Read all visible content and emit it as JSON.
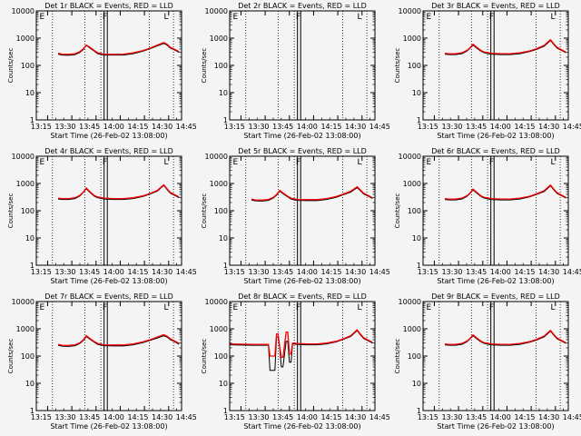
{
  "chart_data": {
    "type": "line",
    "x_unit": "minutes since 13:08:00",
    "ylim": [
      1,
      10000
    ],
    "yscale": "log",
    "grid": false,
    "x_ticks": [
      "13:15",
      "13:30",
      "13:45",
      "14:00",
      "14:15",
      "14:30",
      "14:45"
    ],
    "y_ticks": [
      "1",
      "10",
      "100",
      "1000",
      "10000"
    ],
    "xlabel": "Start Time (26-Feb-02 13:08:00)",
    "ylabel": "Counts/sec",
    "colors": {
      "events": "#000000",
      "lld": "#ff0000"
    },
    "panels": [
      {
        "title": "Det 1r BLACK = Events, RED = LLD",
        "series": [
          {
            "name": "Events",
            "color": "#000000",
            "x": [
              13.5,
              16,
              20,
              24,
              27,
              29,
              31,
              33.5,
              36,
              38,
              42,
              48,
              54,
              60,
              66,
              70,
              75,
              79,
              81,
              83,
              86,
              88.5
            ],
            "y": [
              260,
              240,
              235,
              250,
              300,
              380,
              540,
              420,
              330,
              270,
              240,
              240,
              240,
              270,
              330,
              400,
              520,
              640,
              560,
              430,
              360,
              300
            ]
          },
          {
            "name": "LLD",
            "color": "#ff0000",
            "x": [
              13.5,
              16,
              20,
              24,
              27,
              29,
              31,
              33.5,
              36,
              38,
              42,
              48,
              54,
              60,
              66,
              70,
              75,
              79,
              81,
              83,
              86,
              88.5
            ],
            "y": [
              280,
              260,
              255,
              270,
              320,
              400,
              560,
              450,
              350,
              290,
              260,
              255,
              260,
              290,
              350,
              420,
              560,
              690,
              600,
              460,
              380,
              320
            ]
          }
        ],
        "dotted": [
          10,
          30,
          40,
          70,
          85
        ],
        "solid": [
          42,
          44
        ],
        "markers": [
          "E",
          "F",
          "L"
        ]
      },
      {
        "title": "Det 2r BLACK = Events, RED = LLD",
        "series": [],
        "dotted": [
          10,
          30,
          40,
          70,
          85
        ],
        "solid": [
          42,
          44
        ],
        "markers": [
          "E",
          "F",
          "L"
        ]
      },
      {
        "title": "Det 3r BLACK = Events, RED = LLD",
        "series": [
          {
            "name": "Events",
            "color": "#000000",
            "x": [
              13.5,
              16,
              20,
              24,
              27,
              29,
              31,
              33.5,
              36,
              38,
              42,
              48,
              54,
              60,
              66,
              70,
              75,
              79,
              81,
              83,
              86,
              88.5
            ],
            "y": [
              260,
              250,
              250,
              270,
              330,
              420,
              560,
              420,
              330,
              290,
              260,
              250,
              250,
              270,
              320,
              380,
              500,
              820,
              580,
              430,
              350,
              290
            ]
          },
          {
            "name": "LLD",
            "color": "#ff0000",
            "x": [
              13.5,
              16,
              20,
              24,
              27,
              29,
              31,
              33.5,
              36,
              38,
              42,
              48,
              54,
              60,
              66,
              70,
              75,
              79,
              81,
              83,
              86,
              88.5
            ],
            "y": [
              280,
              270,
              270,
              290,
              350,
              440,
              600,
              450,
              350,
              310,
              280,
              270,
              270,
              290,
              340,
              400,
              540,
              880,
              620,
              460,
              370,
              310
            ]
          }
        ],
        "dotted": [
          10,
          30,
          40,
          70,
          85
        ],
        "solid": [
          42,
          44
        ],
        "markers": [
          "E",
          "F",
          "L"
        ]
      },
      {
        "title": "Det 4r BLACK = Events, RED = LLD",
        "series": [
          {
            "name": "Events",
            "color": "#000000",
            "x": [
              13.5,
              16,
              20,
              24,
              27,
              29,
              31,
              33.5,
              36,
              38,
              42,
              48,
              54,
              60,
              66,
              70,
              75,
              79,
              81,
              83,
              86,
              88.5
            ],
            "y": [
              270,
              260,
              260,
              280,
              350,
              460,
              640,
              450,
              340,
              300,
              270,
              260,
              260,
              280,
              330,
              400,
              520,
              850,
              600,
              440,
              360,
              300
            ]
          },
          {
            "name": "LLD",
            "color": "#ff0000",
            "x": [
              13.5,
              16,
              20,
              24,
              27,
              29,
              31,
              33.5,
              36,
              38,
              42,
              48,
              54,
              60,
              66,
              70,
              75,
              79,
              81,
              83,
              86,
              88.5
            ],
            "y": [
              290,
              280,
              280,
              300,
              370,
              480,
              680,
              480,
              360,
              320,
              290,
              280,
              280,
              300,
              350,
              420,
              560,
              900,
              640,
              470,
              380,
              320
            ]
          }
        ],
        "dotted": [
          10,
          30,
          40,
          70,
          85
        ],
        "solid": [
          42,
          44
        ],
        "markers": [
          "E",
          "F",
          "L"
        ]
      },
      {
        "title": "Det 5r BLACK = Events, RED = LLD",
        "series": [
          {
            "name": "Events",
            "color": "#000000",
            "x": [
              13.5,
              16,
              20,
              24,
              27,
              29,
              31,
              33.5,
              36,
              38,
              42,
              48,
              54,
              60,
              66,
              70,
              75,
              79,
              81,
              83,
              86,
              88.5
            ],
            "y": [
              250,
              230,
              225,
              240,
              290,
              370,
              520,
              400,
              320,
              270,
              240,
              235,
              235,
              260,
              310,
              380,
              480,
              700,
              540,
              410,
              340,
              280
            ]
          },
          {
            "name": "LLD",
            "color": "#ff0000",
            "x": [
              13.5,
              16,
              20,
              24,
              27,
              29,
              31,
              33.5,
              36,
              38,
              42,
              48,
              54,
              60,
              66,
              70,
              75,
              79,
              81,
              83,
              86,
              88.5
            ],
            "y": [
              270,
              250,
              245,
              260,
              310,
              390,
              560,
              430,
              340,
              290,
              260,
              255,
              255,
              280,
              330,
              400,
              520,
              760,
              580,
              440,
              360,
              300
            ]
          }
        ],
        "dotted": [
          10,
          30,
          40,
          70,
          85
        ],
        "solid": [
          42,
          44
        ],
        "markers": [
          "E",
          "F",
          "L"
        ]
      },
      {
        "title": "Det 6r BLACK = Events, RED = LLD",
        "series": [
          {
            "name": "Events",
            "color": "#000000",
            "x": [
              13.5,
              16,
              20,
              24,
              27,
              29,
              31,
              33.5,
              36,
              38,
              42,
              48,
              54,
              60,
              66,
              70,
              75,
              79,
              81,
              83,
              86,
              88.5
            ],
            "y": [
              260,
              250,
              250,
              270,
              330,
              420,
              580,
              430,
              330,
              290,
              260,
              250,
              250,
              270,
              320,
              390,
              500,
              820,
              580,
              430,
              350,
              290
            ]
          },
          {
            "name": "LLD",
            "color": "#ff0000",
            "x": [
              13.5,
              16,
              20,
              24,
              27,
              29,
              31,
              33.5,
              36,
              38,
              42,
              48,
              54,
              60,
              66,
              70,
              75,
              79,
              81,
              83,
              86,
              88.5
            ],
            "y": [
              280,
              270,
              270,
              290,
              350,
              440,
              620,
              460,
              350,
              310,
              280,
              270,
              270,
              290,
              340,
              410,
              540,
              880,
              620,
              460,
              370,
              310
            ]
          }
        ],
        "dotted": [
          10,
          30,
          40,
          70,
          85
        ],
        "solid": [
          42,
          44
        ],
        "markers": [
          "E",
          "F",
          "L"
        ]
      },
      {
        "title": "Det 7r BLACK = Events, RED = LLD",
        "series": [
          {
            "name": "Events",
            "color": "#000000",
            "x": [
              13.5,
              16,
              20,
              24,
              27,
              29,
              31,
              33.5,
              36,
              38,
              42,
              48,
              54,
              60,
              66,
              70,
              75,
              79,
              81,
              83,
              86,
              88.5
            ],
            "y": [
              250,
              230,
              225,
              240,
              290,
              370,
              520,
              400,
              320,
              270,
              240,
              235,
              235,
              260,
              310,
              370,
              460,
              560,
              500,
              400,
              330,
              270
            ]
          },
          {
            "name": "LLD",
            "color": "#ff0000",
            "x": [
              13.5,
              16,
              20,
              24,
              27,
              29,
              31,
              33.5,
              36,
              38,
              42,
              48,
              54,
              60,
              66,
              70,
              75,
              79,
              81,
              83,
              86,
              88.5
            ],
            "y": [
              270,
              250,
              245,
              260,
              310,
              390,
              560,
              430,
              340,
              290,
              260,
              255,
              255,
              280,
              330,
              390,
              500,
              610,
              540,
              430,
              350,
              290
            ]
          }
        ],
        "dotted": [
          10,
          30,
          40,
          70,
          85
        ],
        "solid": [
          42,
          44
        ],
        "markers": [
          "E",
          "F",
          "L"
        ]
      },
      {
        "title": "Det 8r BLACK = Events, RED = LLD",
        "series": [
          {
            "name": "Events",
            "color": "#000000",
            "x": [
              0,
              13.5,
              20,
              24,
              25,
              28,
              29,
              30,
              31,
              32,
              33,
              35,
              36,
              37,
              38,
              39,
              42,
              48,
              54,
              60,
              66,
              70,
              75,
              79,
              81,
              83,
              86,
              88.5
            ],
            "y": [
              260,
              250,
              250,
              250,
              30,
              30,
              500,
              500,
              200,
              40,
              40,
              350,
              350,
              60,
              60,
              280,
              270,
              260,
              260,
              280,
              330,
              400,
              520,
              860,
              600,
              440,
              360,
              300
            ]
          },
          {
            "name": "LLD",
            "color": "#ff0000",
            "x": [
              0,
              13.5,
              20,
              24,
              25,
              28,
              29,
              30,
              31,
              32,
              33,
              35,
              36,
              37,
              38,
              39,
              42,
              48,
              54,
              60,
              66,
              70,
              75,
              79,
              81,
              83,
              86,
              88.5
            ],
            "y": [
              280,
              270,
              270,
              270,
              100,
              100,
              650,
              650,
              220,
              90,
              90,
              750,
              750,
              120,
              120,
              300,
              290,
              280,
              280,
              300,
              350,
              420,
              560,
              920,
              640,
              470,
              380,
              320
            ]
          }
        ],
        "dotted": [
          10,
          30,
          40,
          70,
          85
        ],
        "solid": [
          42,
          44
        ],
        "markers": [
          "E",
          "F",
          "L"
        ]
      },
      {
        "title": "Det 9r BLACK = Events, RED = LLD",
        "series": [
          {
            "name": "Events",
            "color": "#000000",
            "x": [
              13.5,
              16,
              20,
              24,
              27,
              29,
              31,
              33.5,
              36,
              38,
              42,
              48,
              54,
              60,
              66,
              70,
              75,
              79,
              81,
              83,
              86,
              88.5
            ],
            "y": [
              260,
              250,
              250,
              270,
              330,
              420,
              560,
              420,
              330,
              290,
              260,
              250,
              250,
              270,
              320,
              380,
              500,
              820,
              580,
              430,
              350,
              290
            ]
          },
          {
            "name": "LLD",
            "color": "#ff0000",
            "x": [
              13.5,
              16,
              20,
              24,
              27,
              29,
              31,
              33.5,
              36,
              38,
              42,
              48,
              54,
              60,
              66,
              70,
              75,
              79,
              81,
              83,
              86,
              88.5
            ],
            "y": [
              280,
              270,
              270,
              290,
              350,
              440,
              600,
              450,
              350,
              310,
              280,
              270,
              270,
              290,
              340,
              400,
              540,
              880,
              620,
              460,
              370,
              310
            ]
          }
        ],
        "dotted": [
          10,
          30,
          40,
          70,
          85
        ],
        "solid": [
          42,
          44
        ],
        "markers": [
          "E",
          "F",
          "L"
        ]
      }
    ]
  }
}
